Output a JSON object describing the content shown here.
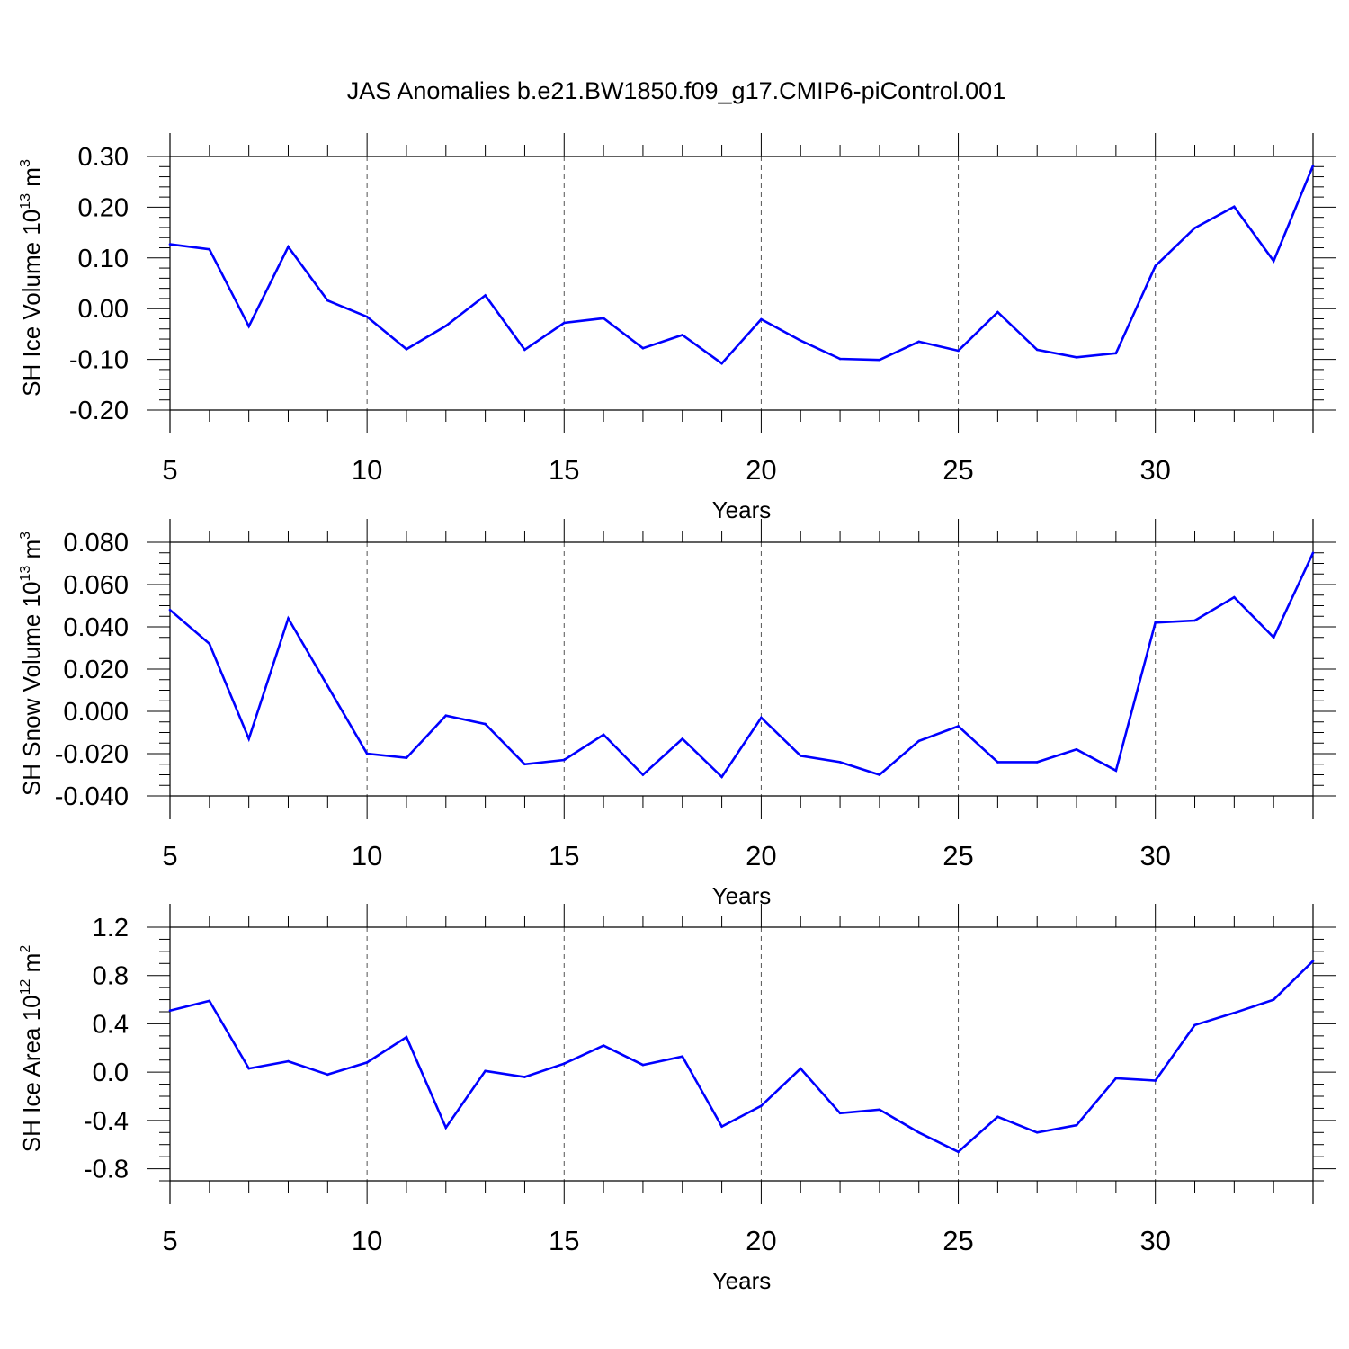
{
  "title": "JAS Anomalies b.e21.BW1850.f09_g17.CMIP6-piControl.001",
  "line_color": "#0000ff",
  "grid_color": "#555555",
  "chart_data": [
    {
      "type": "line",
      "name": "ice-volume",
      "ylabel": {
        "main": "SH Ice Volume 10",
        "exp": "13",
        "unit": " m",
        "unit_exp": "3"
      },
      "xlabel": "Years",
      "xlim": [
        5,
        34
      ],
      "ylim": [
        -0.2,
        0.3
      ],
      "x_ticks": [
        5,
        10,
        15,
        20,
        25,
        30
      ],
      "x_tick_labels": [
        "5",
        "10",
        "15",
        "20",
        "25",
        "30"
      ],
      "y_ticks": [
        -0.2,
        -0.1,
        0.0,
        0.1,
        0.2,
        0.3
      ],
      "y_tick_labels": [
        "-0.20",
        "-0.10",
        "0.00",
        "0.10",
        "0.20",
        "0.30"
      ],
      "y_minor_step": 0.02,
      "x": [
        5,
        6,
        7,
        8,
        9,
        10,
        11,
        12,
        13,
        14,
        15,
        16,
        17,
        18,
        19,
        20,
        21,
        22,
        23,
        24,
        25,
        26,
        27,
        28,
        29,
        30,
        31,
        32,
        33,
        34
      ],
      "values": [
        0.127,
        0.117,
        -0.035,
        0.122,
        0.016,
        -0.016,
        -0.08,
        -0.034,
        0.026,
        -0.081,
        -0.028,
        -0.019,
        -0.078,
        -0.052,
        -0.108,
        -0.021,
        -0.063,
        -0.099,
        -0.101,
        -0.065,
        -0.083,
        -0.007,
        -0.081,
        -0.096,
        -0.088,
        0.084,
        0.159,
        0.201,
        0.094,
        0.282
      ]
    },
    {
      "type": "line",
      "name": "snow-volume",
      "ylabel": {
        "main": "SH Snow Volume 10",
        "exp": "13",
        "unit": " m",
        "unit_exp": "3"
      },
      "xlabel": "Years",
      "xlim": [
        5,
        34
      ],
      "ylim": [
        -0.04,
        0.08
      ],
      "x_ticks": [
        5,
        10,
        15,
        20,
        25,
        30
      ],
      "x_tick_labels": [
        "5",
        "10",
        "15",
        "20",
        "25",
        "30"
      ],
      "y_ticks": [
        -0.04,
        -0.02,
        0.0,
        0.02,
        0.04,
        0.06,
        0.08
      ],
      "y_tick_labels": [
        "-0.040",
        "-0.020",
        "0.000",
        "0.020",
        "0.040",
        "0.060",
        "0.080"
      ],
      "y_minor_step": 0.005,
      "x": [
        5,
        6,
        7,
        8,
        9,
        10,
        11,
        12,
        13,
        14,
        15,
        16,
        17,
        18,
        19,
        20,
        21,
        22,
        23,
        24,
        25,
        26,
        27,
        28,
        29,
        30,
        31,
        32,
        33,
        34
      ],
      "values": [
        0.048,
        0.032,
        -0.013,
        0.044,
        0.012,
        -0.02,
        -0.022,
        -0.002,
        -0.006,
        -0.025,
        -0.023,
        -0.011,
        -0.03,
        -0.013,
        -0.031,
        -0.003,
        -0.021,
        -0.024,
        -0.03,
        -0.014,
        -0.007,
        -0.024,
        -0.024,
        -0.018,
        -0.028,
        0.042,
        0.043,
        0.054,
        0.035,
        0.075
      ]
    },
    {
      "type": "line",
      "name": "ice-area",
      "ylabel": {
        "main": "SH Ice Area 10",
        "exp": "12",
        "unit": " m",
        "unit_exp": "2"
      },
      "xlabel": "Years",
      "xlim": [
        5,
        34
      ],
      "ylim": [
        -0.9,
        1.2
      ],
      "x_ticks": [
        5,
        10,
        15,
        20,
        25,
        30
      ],
      "x_tick_labels": [
        "5",
        "10",
        "15",
        "20",
        "25",
        "30"
      ],
      "y_ticks": [
        -0.8,
        -0.4,
        0.0,
        0.4,
        0.8,
        1.2
      ],
      "y_tick_labels": [
        "-0.8",
        "-0.4",
        "0.0",
        "0.4",
        "0.8",
        "1.2"
      ],
      "y_minor_step": 0.1,
      "x": [
        5,
        6,
        7,
        8,
        9,
        10,
        11,
        12,
        13,
        14,
        15,
        16,
        17,
        18,
        19,
        20,
        21,
        22,
        23,
        24,
        25,
        26,
        27,
        28,
        29,
        30,
        31,
        32,
        33,
        34
      ],
      "values": [
        0.51,
        0.59,
        0.03,
        0.09,
        -0.02,
        0.08,
        0.29,
        -0.46,
        0.01,
        -0.04,
        0.07,
        0.22,
        0.06,
        0.13,
        -0.45,
        -0.28,
        0.03,
        -0.34,
        -0.31,
        -0.5,
        -0.66,
        -0.37,
        -0.5,
        -0.44,
        -0.05,
        -0.07,
        0.39,
        0.49,
        0.6,
        0.92
      ]
    }
  ]
}
